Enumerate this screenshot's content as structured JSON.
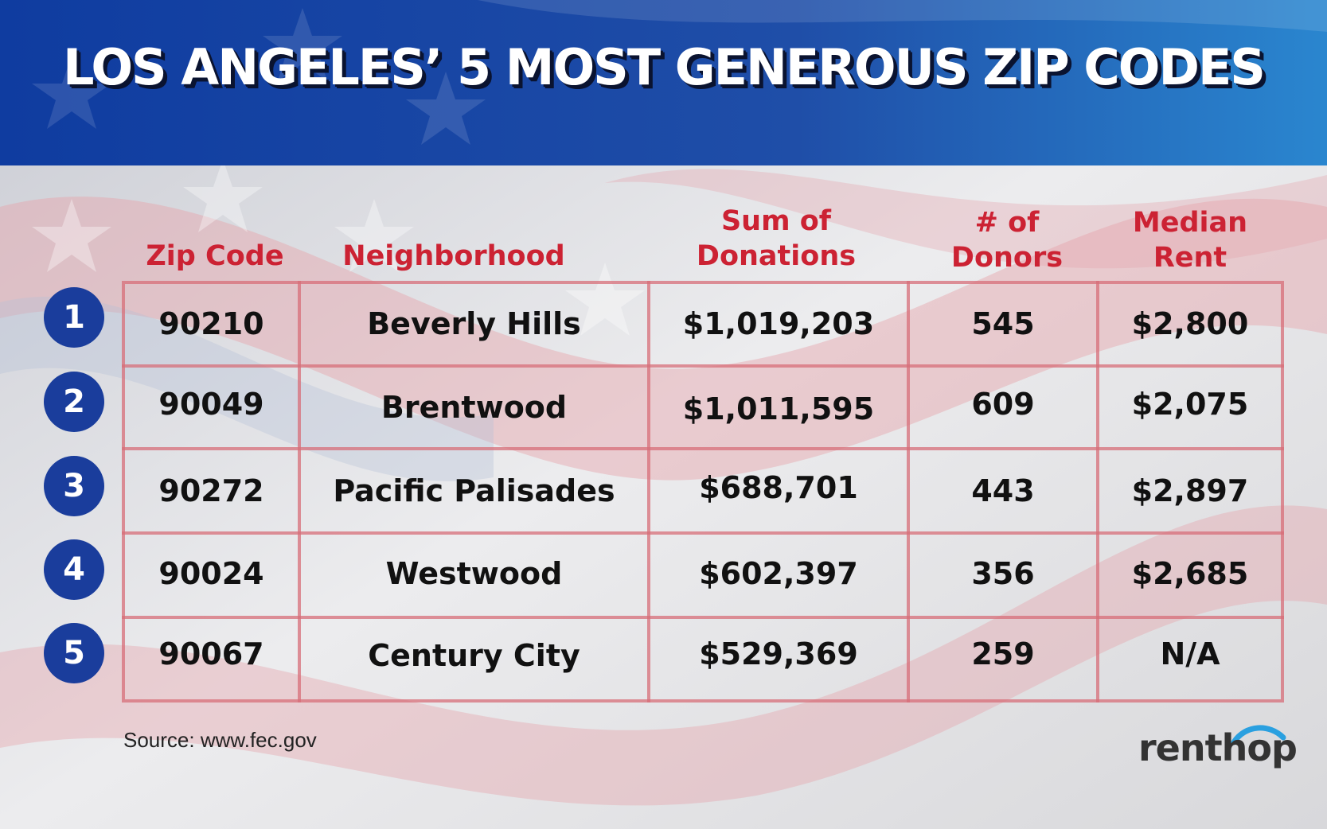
{
  "title": "LOS ANGELES’ 5 MOST GENEROUS ZIP CODES",
  "columns": {
    "zip": "Zip Code",
    "neighborhood": "Neighborhood",
    "sum_line1": "Sum of",
    "sum_line2": "Donations",
    "donors_line1": "# of",
    "donors_line2": "Donors",
    "rent_line1": "Median",
    "rent_line2": "Rent"
  },
  "rows": [
    {
      "rank": "1",
      "zip": "90210",
      "neighborhood": "Beverly Hills",
      "sum": "$1,019,203",
      "donors": "545",
      "rent": "$2,800"
    },
    {
      "rank": "2",
      "zip": "90049",
      "neighborhood": "Brentwood",
      "sum": "$1,011,595",
      "donors": "609",
      "rent": "$2,075"
    },
    {
      "rank": "3",
      "zip": "90272",
      "neighborhood": "Pacific Palisades",
      "sum": "$688,701",
      "donors": "443",
      "rent": "$2,897"
    },
    {
      "rank": "4",
      "zip": "90024",
      "neighborhood": "Westwood",
      "sum": "$602,397",
      "donors": "356",
      "rent": "$2,685"
    },
    {
      "rank": "5",
      "zip": "90067",
      "neighborhood": "Century City",
      "sum": "$529,369",
      "donors": "259",
      "rent": "N/A"
    }
  ],
  "source": "Source: www.fec.gov",
  "logo": "renthop",
  "colors": {
    "banner": "#1f4aa8",
    "header_text": "#cc2233",
    "rank_circle": "#1a3d9c",
    "grid_line": "#d76e78"
  }
}
